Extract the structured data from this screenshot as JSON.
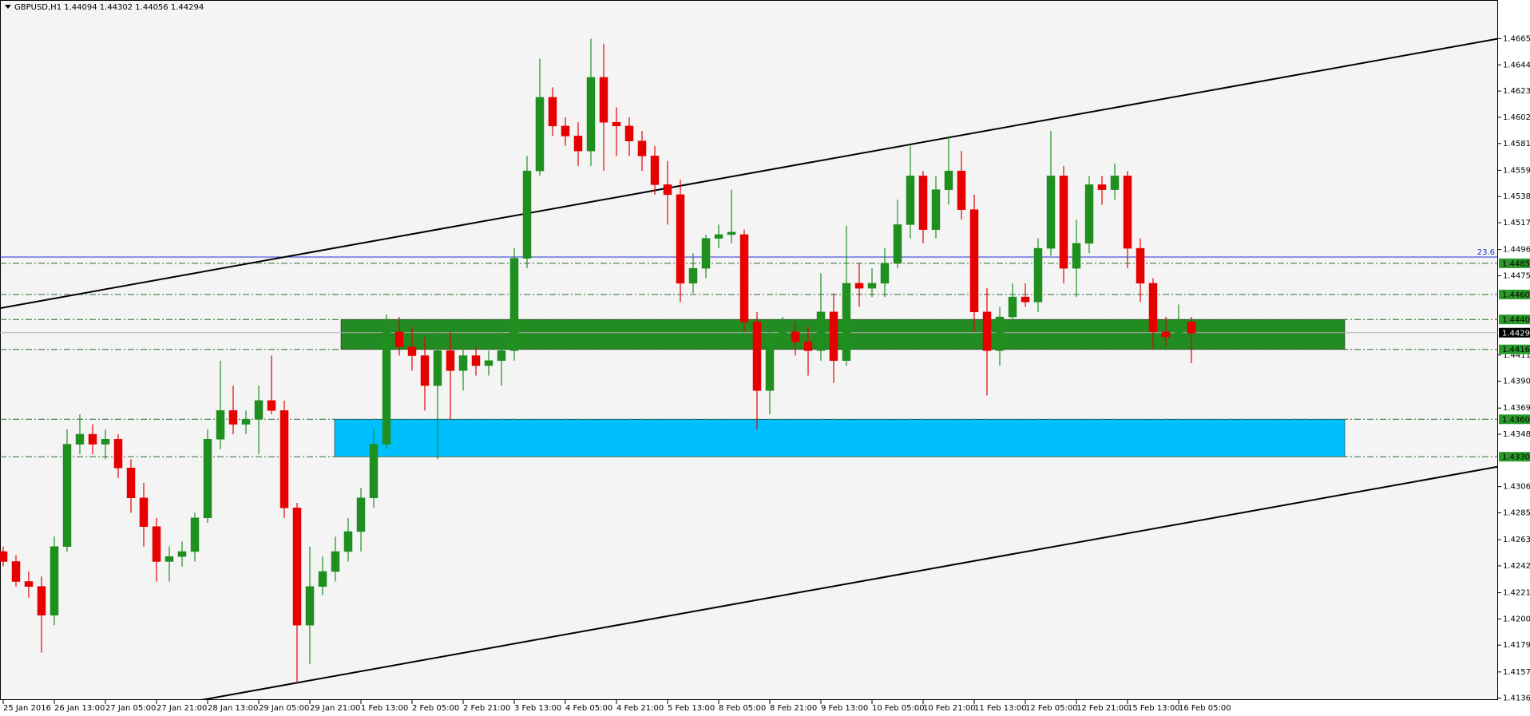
{
  "chart_data": {
    "type": "candlestick",
    "title": "GBPUSD,H1  1.44094 1.44302 1.44056 1.44294",
    "categories": [
      "25 Jan 2016",
      null,
      null,
      null,
      "26 Jan 13:00",
      null,
      null,
      null,
      "27 Jan 05:00",
      null,
      null,
      null,
      "27 Jan 21:00",
      null,
      null,
      null,
      "28 Jan 13:00",
      null,
      null,
      null,
      "29 Jan 05:00",
      null,
      null,
      null,
      "29 Jan 21:00",
      null,
      null,
      null,
      "1 Feb 13:00",
      null,
      null,
      null,
      "2 Feb 05:00",
      null,
      null,
      null,
      "2 Feb 21:00",
      null,
      null,
      null,
      "3 Feb 13:00",
      null,
      null,
      null,
      "4 Feb 05:00",
      null,
      null,
      null,
      "4 Feb 21:00",
      null,
      null,
      null,
      "5 Feb 13:00",
      null,
      null,
      null,
      "8 Feb 05:00",
      null,
      null,
      null,
      "8 Feb 21:00",
      null,
      null,
      null,
      "9 Feb 13:00",
      null,
      null,
      null,
      "10 Feb 05:00",
      null,
      null,
      null,
      "10 Feb 21:00",
      null,
      null,
      null,
      "11 Feb 13:00",
      null,
      null,
      null,
      "12 Feb 05:00",
      null,
      null,
      null,
      "12 Feb 21:00",
      null,
      null,
      null,
      "15 Feb 13:00",
      null,
      null,
      null,
      "16 Feb 05:00",
      null
    ],
    "open": [
      1.4254,
      1.4246,
      1.423,
      1.4226,
      1.4203,
      1.4258,
      1.434,
      1.4348,
      1.434,
      1.4344,
      1.4321,
      1.4297,
      1.4274,
      1.4246,
      1.425,
      1.4254,
      1.4281,
      1.4344,
      1.4367,
      1.4356,
      1.436,
      1.4375,
      1.4367,
      1.4289,
      1.4195,
      1.4226,
      1.4238,
      1.4254,
      1.427,
      1.4297,
      1.434,
      1.443,
      1.4418,
      1.4411,
      1.4387,
      1.4415,
      1.4399,
      1.4411,
      1.4403,
      1.4407,
      1.4415,
      1.4489,
      1.4559,
      1.4618,
      1.4595,
      1.4587,
      1.4575,
      1.4634,
      1.4598,
      1.4595,
      1.4583,
      1.4571,
      1.4548,
      1.454,
      1.4469,
      1.4481,
      1.4505,
      1.4508,
      1.4508,
      1.4438,
      1.4383,
      1.4426,
      1.443,
      1.4422,
      1.4415,
      1.4446,
      1.4407,
      1.4469,
      1.4465,
      1.4469,
      1.4485,
      1.4516,
      1.4555,
      1.4512,
      1.4544,
      1.4559,
      1.4528,
      1.4446,
      1.4415,
      1.4442,
      1.4458,
      1.4454,
      1.4497,
      1.4555,
      1.4481,
      1.4501,
      1.4548,
      1.4544,
      1.4555,
      1.4497,
      1.4469,
      1.443,
      1.4426,
      1.4438
    ],
    "high": [
      1.4258,
      1.4251,
      1.4238,
      1.4234,
      1.4266,
      1.4352,
      1.4364,
      1.4356,
      1.4352,
      1.4348,
      1.4328,
      1.4309,
      1.4281,
      1.4258,
      1.4262,
      1.4285,
      1.4352,
      1.4407,
      1.4387,
      1.4367,
      1.4387,
      1.4411,
      1.4375,
      1.4293,
      1.4258,
      1.425,
      1.4266,
      1.4281,
      1.4305,
      1.4352,
      1.4444,
      1.4442,
      1.4434,
      1.4426,
      1.4438,
      1.443,
      1.4418,
      1.4418,
      1.4415,
      1.4434,
      1.4497,
      1.4571,
      1.4649,
      1.4626,
      1.4602,
      1.4598,
      1.4665,
      1.4661,
      1.461,
      1.4602,
      1.4591,
      1.4579,
      1.4567,
      1.4552,
      1.4493,
      1.4508,
      1.4516,
      1.4544,
      1.4512,
      1.4446,
      1.4434,
      1.4442,
      1.4438,
      1.4434,
      1.4477,
      1.4461,
      1.4515,
      1.4485,
      1.4481,
      1.4497,
      1.4536,
      1.4579,
      1.4559,
      1.4555,
      1.4587,
      1.4575,
      1.454,
      1.4465,
      1.445,
      1.4469,
      1.4469,
      1.4505,
      1.4591,
      1.4563,
      1.452,
      1.4555,
      1.4555,
      1.4565,
      1.4559,
      1.4505,
      1.4473,
      1.4442,
      1.4452,
      1.4442
    ],
    "low": [
      1.4242,
      1.4226,
      1.4217,
      1.4173,
      1.4195,
      1.4254,
      1.4332,
      1.4332,
      1.4328,
      1.4313,
      1.4285,
      1.4258,
      1.423,
      1.423,
      1.4242,
      1.4246,
      1.4277,
      1.4336,
      1.4348,
      1.4348,
      1.4332,
      1.4364,
      1.4281,
      1.4148,
      1.4164,
      1.4219,
      1.423,
      1.4246,
      1.4254,
      1.4289,
      1.4336,
      1.4411,
      1.4399,
      1.4367,
      1.4328,
      1.436,
      1.4383,
      1.4395,
      1.4395,
      1.4387,
      1.4407,
      1.4481,
      1.4555,
      1.4587,
      1.4579,
      1.4563,
      1.4563,
      1.4559,
      1.4571,
      1.4571,
      1.4559,
      1.454,
      1.4516,
      1.4454,
      1.4461,
      1.4473,
      1.4497,
      1.4501,
      1.443,
      1.4352,
      1.4364,
      1.4418,
      1.4411,
      1.4395,
      1.4407,
      1.4389,
      1.4403,
      1.445,
      1.4458,
      1.4458,
      1.4481,
      1.4505,
      1.4501,
      1.4505,
      1.4532,
      1.452,
      1.443,
      1.4379,
      1.4403,
      1.4434,
      1.445,
      1.4446,
      1.4491,
      1.4469,
      1.4458,
      1.4493,
      1.4532,
      1.4536,
      1.4481,
      1.4454,
      1.4416,
      1.4418,
      1.4422,
      1.4405
    ],
    "close": [
      1.4246,
      1.423,
      1.4226,
      1.4203,
      1.4258,
      1.434,
      1.4348,
      1.434,
      1.4344,
      1.4321,
      1.4297,
      1.4274,
      1.4246,
      1.425,
      1.4254,
      1.4281,
      1.4344,
      1.4367,
      1.4356,
      1.436,
      1.4375,
      1.4367,
      1.4289,
      1.4195,
      1.4226,
      1.4238,
      1.4254,
      1.427,
      1.4297,
      1.434,
      1.443,
      1.4418,
      1.4411,
      1.4387,
      1.4415,
      1.4399,
      1.4411,
      1.4403,
      1.4407,
      1.4415,
      1.4489,
      1.4559,
      1.4618,
      1.4595,
      1.4587,
      1.4575,
      1.4634,
      1.4598,
      1.4595,
      1.4583,
      1.4571,
      1.4548,
      1.454,
      1.4469,
      1.4481,
      1.4505,
      1.4508,
      1.451,
      1.4438,
      1.4383,
      1.4426,
      1.443,
      1.4422,
      1.4415,
      1.4446,
      1.4407,
      1.4469,
      1.4465,
      1.4469,
      1.4485,
      1.4516,
      1.4555,
      1.4512,
      1.4544,
      1.4559,
      1.4528,
      1.4446,
      1.4415,
      1.4442,
      1.4458,
      1.4454,
      1.4497,
      1.4555,
      1.4481,
      1.4501,
      1.4548,
      1.4544,
      1.4555,
      1.4497,
      1.4469,
      1.443,
      1.4426,
      1.4438,
      1.4429
    ],
    "colors": {
      "up": "#1f8f1f",
      "down": "#e60000"
    },
    "ylim": [
      1.4135,
      1.4696
    ],
    "yticks": [
      {
        "value": 1.4665,
        "label": "1.46650"
      },
      {
        "value": 1.4644,
        "label": "1.46440"
      },
      {
        "value": 1.4623,
        "label": "1.46230"
      },
      {
        "value": 1.4602,
        "label": "1.46020"
      },
      {
        "value": 1.4581,
        "label": "1.45810"
      },
      {
        "value": 1.45595,
        "label": "1.45595"
      },
      {
        "value": 1.45385,
        "label": "1.45385"
      },
      {
        "value": 1.45175,
        "label": "1.45175"
      },
      {
        "value": 1.4496,
        "label": "1.44960"
      },
      {
        "value": 1.4475,
        "label": "1.44750"
      },
      {
        "value": 1.44115,
        "label": "1.44115"
      },
      {
        "value": 1.43905,
        "label": "1.43905"
      },
      {
        "value": 1.4369,
        "label": "1.43690"
      },
      {
        "value": 1.4348,
        "label": "1.43480"
      },
      {
        "value": 1.4306,
        "label": "1.43060"
      },
      {
        "value": 1.4285,
        "label": "1.42850"
      },
      {
        "value": 1.42635,
        "label": "1.42635"
      },
      {
        "value": 1.42425,
        "label": "1.42425"
      },
      {
        "value": 1.4221,
        "label": "1.42210"
      },
      {
        "value": 1.42,
        "label": "1.42000"
      },
      {
        "value": 1.4179,
        "label": "1.41790"
      },
      {
        "value": 1.41575,
        "label": "1.41575"
      },
      {
        "value": 1.41365,
        "label": "1.41365"
      }
    ],
    "levels": [
      {
        "value": 1.4485,
        "label": "1.44850"
      },
      {
        "value": 1.446,
        "label": "1.44600"
      },
      {
        "value": 1.444,
        "label": "1.44400"
      },
      {
        "value": 1.4416,
        "label": "1.44160"
      },
      {
        "value": 1.436,
        "label": "1.43600"
      },
      {
        "value": 1.433,
        "label": "1.43300"
      }
    ],
    "level_color": "#2e6b2e",
    "current": {
      "value": 1.44294,
      "label": "1.44294"
    },
    "fibo": {
      "value": 1.449,
      "label": "23.6",
      "color": "#1f2fd0"
    },
    "zones": [
      {
        "from": 1.4416,
        "to": 1.444,
        "color": "#228b22"
      },
      {
        "from": 1.433,
        "to": 1.436,
        "color": "#00bfff"
      }
    ],
    "trendlines": [
      {
        "start": 1.4449,
        "end": 1.4665
      },
      {
        "start": 1.4106,
        "end": 1.4322
      }
    ],
    "grid": false
  }
}
